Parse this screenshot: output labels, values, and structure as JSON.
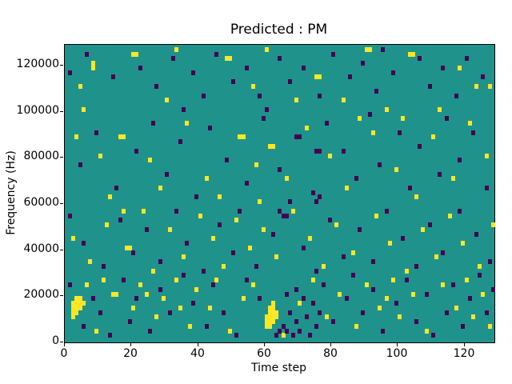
{
  "figure": {
    "title": "Predicted : PM",
    "xlabel": "Time step",
    "ylabel": "Frequency (Hz)"
  },
  "chart_data": {
    "type": "heatmap",
    "title": "Predicted : PM",
    "xlabel": "Time step",
    "ylabel": "Frequency (Hz)",
    "xlim": [
      0,
      129
    ],
    "ylim": [
      0,
      129000
    ],
    "x_ticks": [
      0,
      20,
      40,
      60,
      80,
      100,
      120
    ],
    "y_ticks": [
      0,
      20000,
      40000,
      60000,
      80000,
      100000,
      120000
    ],
    "grid": false,
    "legend": "none",
    "colors": {
      "background": "#20928c",
      "yellow": "#fde725",
      "purple": "#440154"
    },
    "cell": {
      "t_step": 1,
      "f_step_hz": 2000
    },
    "cells": {
      "yellow": [
        [
          8,
          60
        ],
        [
          8,
          59
        ],
        [
          20,
          62
        ],
        [
          21,
          62
        ],
        [
          48,
          61
        ],
        [
          49,
          61
        ],
        [
          75,
          57
        ],
        [
          76,
          57
        ],
        [
          90,
          63
        ],
        [
          91,
          63
        ],
        [
          103,
          62
        ],
        [
          104,
          62
        ],
        [
          118,
          59
        ],
        [
          123,
          55
        ],
        [
          127,
          55
        ],
        [
          4,
          55
        ],
        [
          5,
          50
        ],
        [
          30,
          52
        ],
        [
          56,
          55
        ],
        [
          69,
          52
        ],
        [
          83,
          52
        ],
        [
          96,
          50
        ],
        [
          112,
          50
        ],
        [
          60,
          63
        ],
        [
          33,
          63
        ],
        [
          3,
          44
        ],
        [
          10,
          40
        ],
        [
          16,
          44
        ],
        [
          17,
          44
        ],
        [
          25,
          39
        ],
        [
          36,
          47
        ],
        [
          42,
          35
        ],
        [
          52,
          44
        ],
        [
          53,
          44
        ],
        [
          57,
          38
        ],
        [
          58,
          30
        ],
        [
          61,
          42
        ],
        [
          62,
          42
        ],
        [
          66,
          35
        ],
        [
          72,
          46
        ],
        [
          79,
          40
        ],
        [
          84,
          33
        ],
        [
          92,
          45
        ],
        [
          99,
          37
        ],
        [
          105,
          31
        ],
        [
          110,
          44
        ],
        [
          116,
          35
        ],
        [
          121,
          47
        ],
        [
          126,
          40
        ],
        [
          46,
          31
        ],
        [
          28,
          33
        ],
        [
          13,
          31
        ],
        [
          88,
          48
        ],
        [
          101,
          48
        ],
        [
          2,
          22
        ],
        [
          7,
          17
        ],
        [
          12,
          25
        ],
        [
          18,
          20
        ],
        [
          19,
          20
        ],
        [
          23,
          28
        ],
        [
          26,
          15
        ],
        [
          31,
          24
        ],
        [
          35,
          18
        ],
        [
          40,
          27
        ],
        [
          44,
          22
        ],
        [
          47,
          16
        ],
        [
          51,
          26
        ],
        [
          55,
          20
        ],
        [
          59,
          24
        ],
        [
          63,
          18
        ],
        [
          68,
          28
        ],
        [
          73,
          22
        ],
        [
          77,
          16
        ],
        [
          81,
          25
        ],
        [
          86,
          19
        ],
        [
          93,
          27
        ],
        [
          97,
          21
        ],
        [
          102,
          15
        ],
        [
          107,
          24
        ],
        [
          111,
          18
        ],
        [
          115,
          27
        ],
        [
          119,
          21
        ],
        [
          124,
          16
        ],
        [
          128,
          25
        ],
        [
          17,
          28
        ],
        [
          2,
          5
        ],
        [
          2,
          6
        ],
        [
          2,
          7
        ],
        [
          2,
          8
        ],
        [
          3,
          6
        ],
        [
          3,
          7
        ],
        [
          3,
          8
        ],
        [
          3,
          9
        ],
        [
          4,
          7
        ],
        [
          4,
          8
        ],
        [
          4,
          9
        ],
        [
          5,
          8
        ],
        [
          60,
          3
        ],
        [
          60,
          4
        ],
        [
          60,
          5
        ],
        [
          61,
          3
        ],
        [
          61,
          4
        ],
        [
          61,
          5
        ],
        [
          61,
          6
        ],
        [
          61,
          7
        ],
        [
          62,
          4
        ],
        [
          62,
          5
        ],
        [
          62,
          6
        ],
        [
          62,
          7
        ],
        [
          62,
          8
        ],
        [
          63,
          5
        ],
        [
          63,
          6
        ],
        [
          9,
          2
        ],
        [
          14,
          10
        ],
        [
          15,
          10
        ],
        [
          20,
          7
        ],
        [
          22,
          12
        ],
        [
          27,
          5
        ],
        [
          29,
          9
        ],
        [
          33,
          13
        ],
        [
          37,
          3
        ],
        [
          39,
          11
        ],
        [
          43,
          7
        ],
        [
          45,
          13
        ],
        [
          49,
          2
        ],
        [
          53,
          9
        ],
        [
          56,
          12
        ],
        [
          65,
          1
        ],
        [
          70,
          8
        ],
        [
          74,
          13
        ],
        [
          78,
          5
        ],
        [
          82,
          10
        ],
        [
          87,
          3
        ],
        [
          90,
          12
        ],
        [
          94,
          7
        ],
        [
          98,
          13
        ],
        [
          100,
          5
        ],
        [
          104,
          10
        ],
        [
          108,
          2
        ],
        [
          113,
          12
        ],
        [
          117,
          7
        ],
        [
          120,
          13
        ],
        [
          122,
          5
        ],
        [
          125,
          10
        ],
        [
          127,
          3
        ],
        [
          24,
          10
        ],
        [
          11,
          13
        ],
        [
          6,
          12
        ],
        [
          34,
          7
        ],
        [
          96,
          9
        ]
      ],
      "purple": [
        [
          1,
          58
        ],
        [
          6,
          62
        ],
        [
          14,
          57
        ],
        [
          22,
          59
        ],
        [
          27,
          55
        ],
        [
          32,
          61
        ],
        [
          38,
          58
        ],
        [
          41,
          53
        ],
        [
          45,
          62
        ],
        [
          50,
          56
        ],
        [
          54,
          59
        ],
        [
          58,
          53
        ],
        [
          64,
          61
        ],
        [
          67,
          56
        ],
        [
          71,
          59
        ],
        [
          76,
          53
        ],
        [
          80,
          62
        ],
        [
          85,
          57
        ],
        [
          89,
          60
        ],
        [
          93,
          54
        ],
        [
          95,
          63
        ],
        [
          98,
          58
        ],
        [
          106,
          61
        ],
        [
          109,
          55
        ],
        [
          113,
          59
        ],
        [
          117,
          53
        ],
        [
          120,
          61
        ],
        [
          125,
          57
        ],
        [
          35,
          50
        ],
        [
          60,
          50
        ],
        [
          4,
          38
        ],
        [
          9,
          45
        ],
        [
          15,
          33
        ],
        [
          21,
          41
        ],
        [
          26,
          47
        ],
        [
          30,
          36
        ],
        [
          34,
          43
        ],
        [
          39,
          31
        ],
        [
          43,
          46
        ],
        [
          48,
          39
        ],
        [
          54,
          34
        ],
        [
          59,
          48
        ],
        [
          64,
          37
        ],
        [
          69,
          44
        ],
        [
          70,
          44
        ],
        [
          74,
          32
        ],
        [
          78,
          47
        ],
        [
          83,
          41
        ],
        [
          87,
          35
        ],
        [
          91,
          49
        ],
        [
          94,
          38
        ],
        [
          100,
          45
        ],
        [
          103,
          33
        ],
        [
          106,
          42
        ],
        [
          112,
          36
        ],
        [
          114,
          48
        ],
        [
          118,
          39
        ],
        [
          122,
          45
        ],
        [
          126,
          33
        ],
        [
          67,
          30
        ],
        [
          75,
          30
        ],
        [
          76,
          31
        ],
        [
          75,
          41
        ],
        [
          76,
          41
        ],
        [
          1,
          27
        ],
        [
          5,
          21
        ],
        [
          11,
          16
        ],
        [
          16,
          26
        ],
        [
          20,
          19
        ],
        [
          24,
          24
        ],
        [
          28,
          17
        ],
        [
          33,
          28
        ],
        [
          36,
          21
        ],
        [
          41,
          15
        ],
        [
          46,
          25
        ],
        [
          50,
          19
        ],
        [
          52,
          28
        ],
        [
          57,
          16
        ],
        [
          62,
          23
        ],
        [
          66,
          27
        ],
        [
          71,
          20
        ],
        [
          75,
          15
        ],
        [
          79,
          26
        ],
        [
          83,
          18
        ],
        [
          88,
          24
        ],
        [
          92,
          17
        ],
        [
          96,
          28
        ],
        [
          101,
          22
        ],
        [
          105,
          16
        ],
        [
          109,
          25
        ],
        [
          113,
          19
        ],
        [
          118,
          28
        ],
        [
          123,
          23
        ],
        [
          127,
          17
        ],
        [
          64,
          28
        ],
        [
          65,
          27
        ],
        [
          63,
          1
        ],
        [
          64,
          2
        ],
        [
          65,
          3
        ],
        [
          66,
          2
        ],
        [
          67,
          6
        ],
        [
          68,
          1
        ],
        [
          69,
          4
        ],
        [
          70,
          2
        ],
        [
          71,
          9
        ],
        [
          72,
          5
        ],
        [
          73,
          1
        ],
        [
          74,
          8
        ],
        [
          75,
          3
        ],
        [
          76,
          6
        ],
        [
          66,
          10
        ],
        [
          69,
          11
        ],
        [
          1,
          12
        ],
        [
          5,
          3
        ],
        [
          8,
          9
        ],
        [
          10,
          6
        ],
        [
          13,
          1
        ],
        [
          17,
          13
        ],
        [
          19,
          4
        ],
        [
          21,
          9
        ],
        [
          25,
          2
        ],
        [
          28,
          11
        ],
        [
          31,
          6
        ],
        [
          35,
          14
        ],
        [
          38,
          8
        ],
        [
          42,
          3
        ],
        [
          44,
          12
        ],
        [
          47,
          6
        ],
        [
          51,
          1
        ],
        [
          54,
          13
        ],
        [
          58,
          9
        ],
        [
          77,
          12
        ],
        [
          80,
          4
        ],
        [
          84,
          9
        ],
        [
          86,
          14
        ],
        [
          89,
          6
        ],
        [
          92,
          11
        ],
        [
          95,
          2
        ],
        [
          99,
          8
        ],
        [
          102,
          13
        ],
        [
          105,
          4
        ],
        [
          108,
          10
        ],
        [
          110,
          1
        ],
        [
          114,
          6
        ],
        [
          116,
          12
        ],
        [
          119,
          3
        ],
        [
          121,
          9
        ],
        [
          124,
          14
        ],
        [
          126,
          6
        ],
        [
          128,
          11
        ]
      ]
    }
  }
}
